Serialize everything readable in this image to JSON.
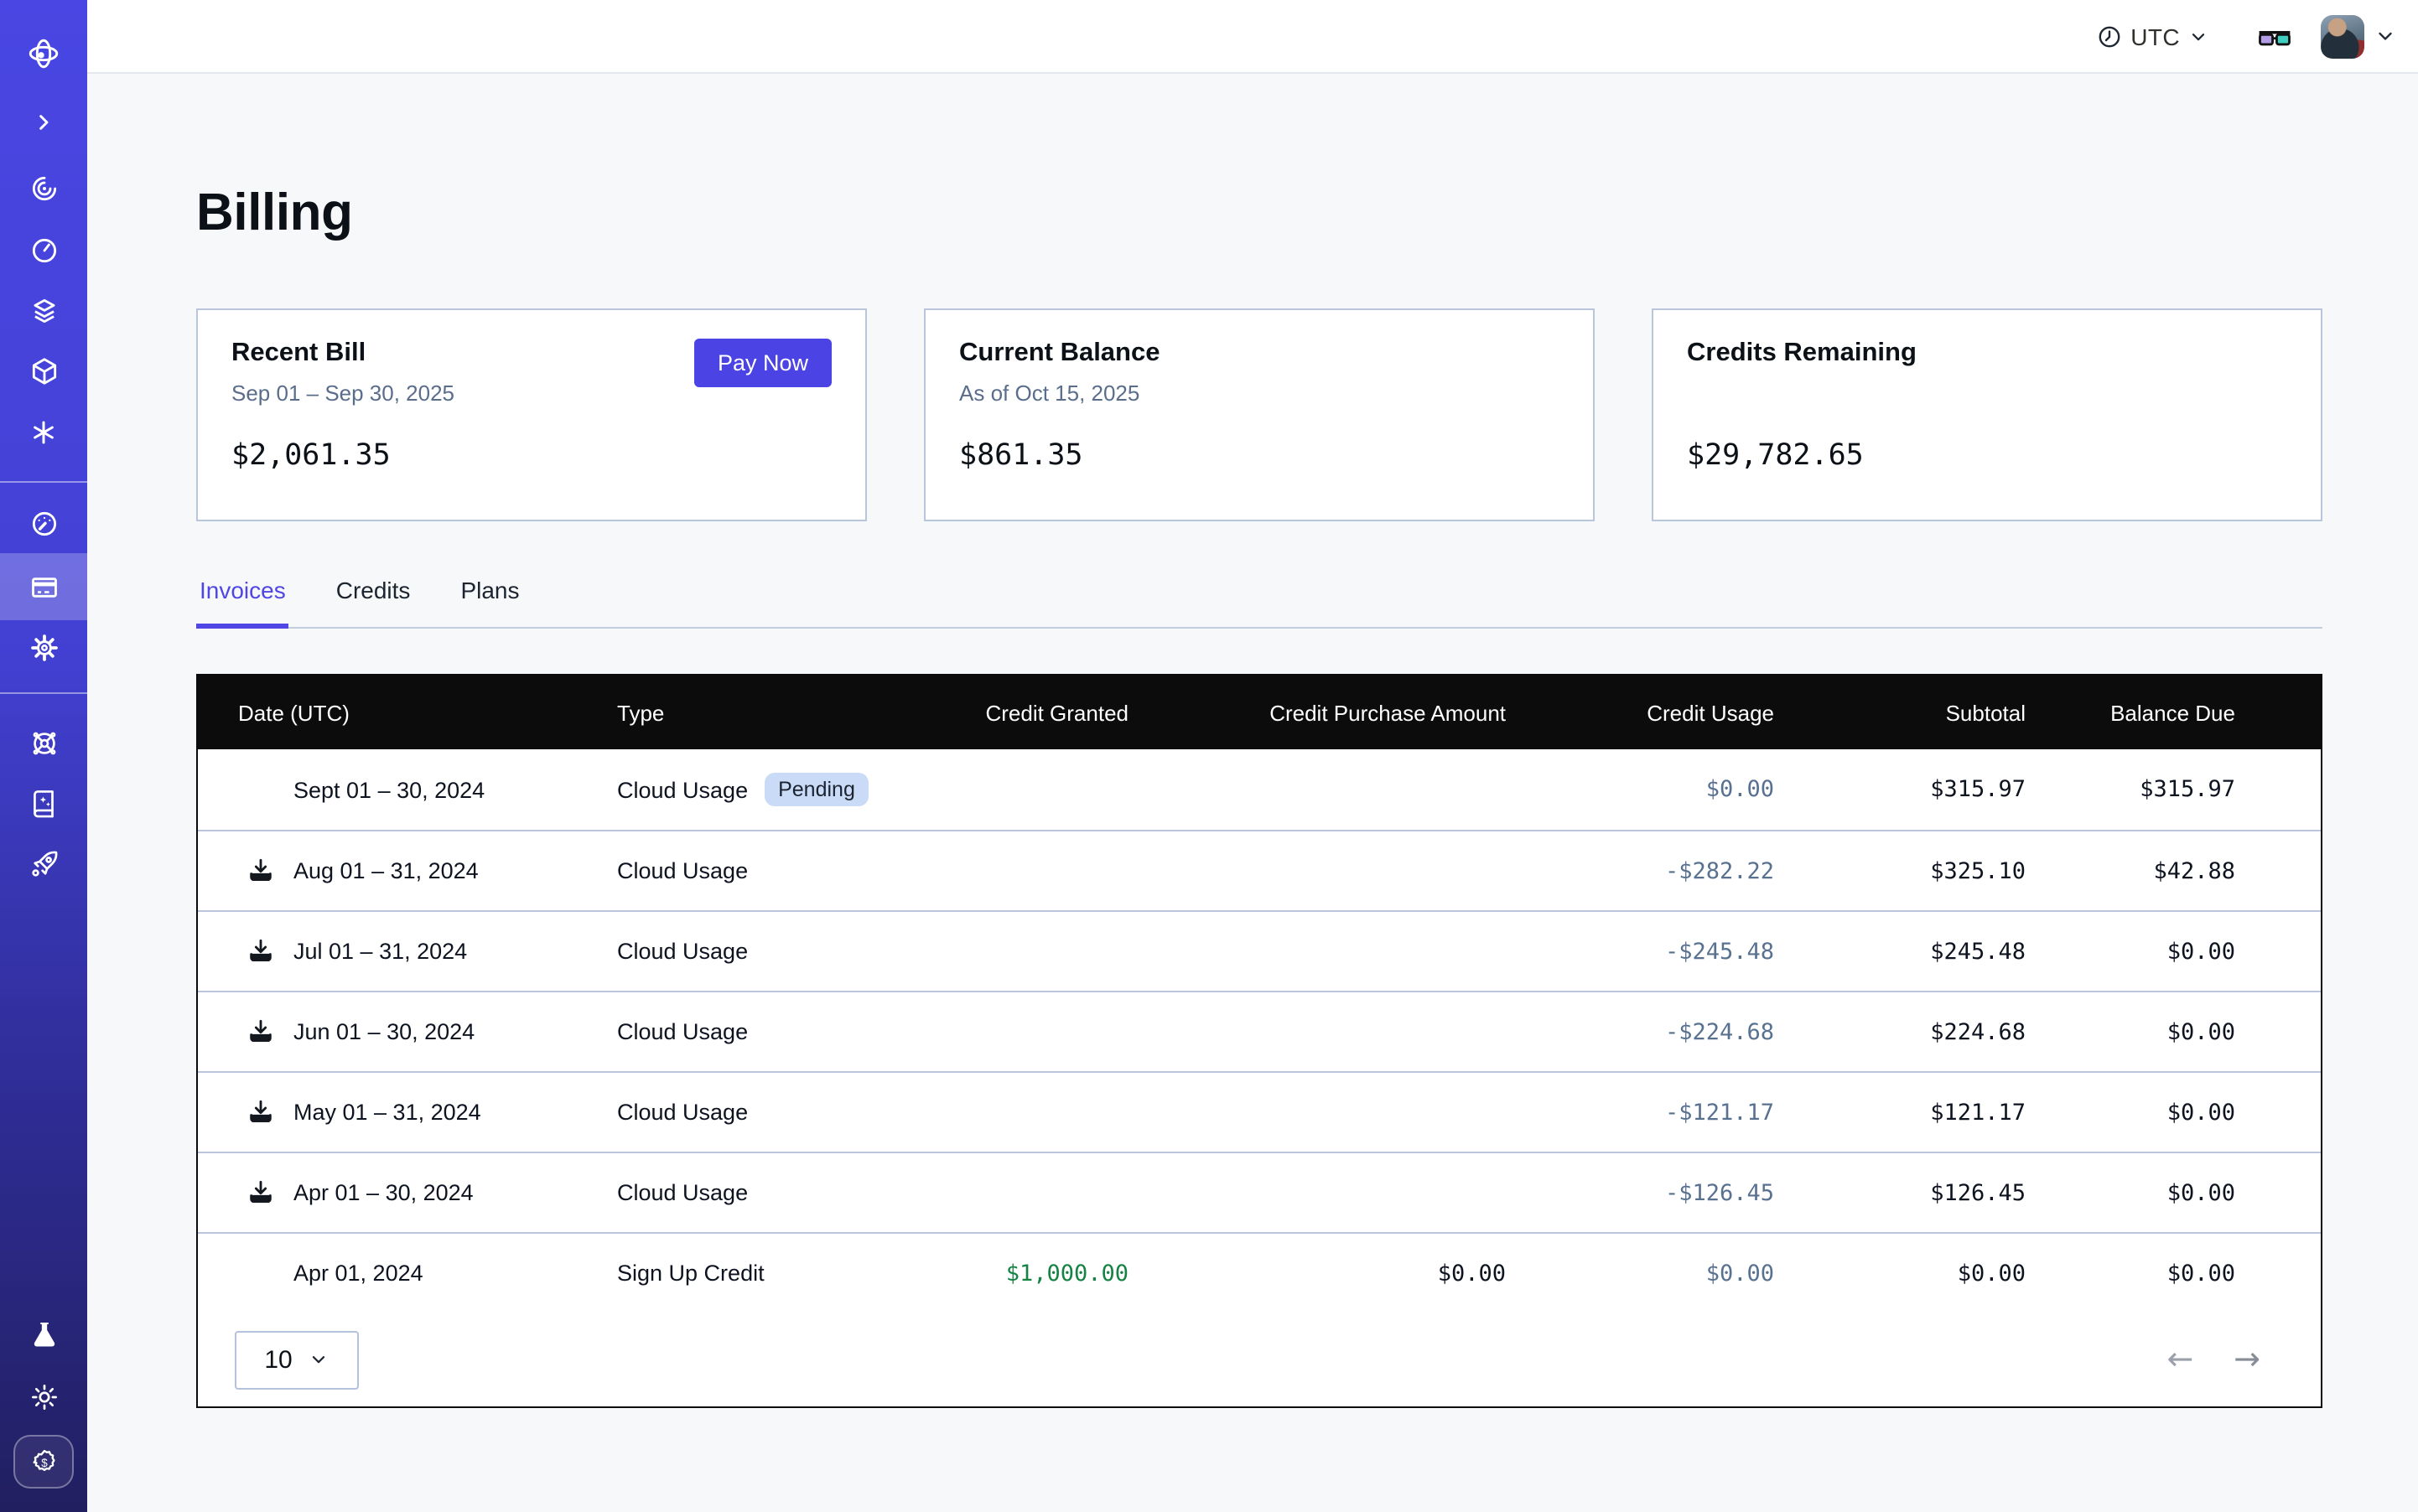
{
  "topbar": {
    "timezone_label": "UTC",
    "icons": [
      "clock-icon",
      "chevron-down-icon",
      "3d-glasses-icon",
      "avatar",
      "chevron-down-icon"
    ]
  },
  "page": {
    "title": "Billing"
  },
  "cards": [
    {
      "title": "Recent Bill",
      "subtitle": "Sep 01 – Sep 30, 2025",
      "amount": "$2,061.35",
      "action": "Pay Now",
      "action_color": "#4b43e3"
    },
    {
      "title": "Current Balance",
      "subtitle": "As of Oct 15, 2025",
      "amount": "$861.35"
    },
    {
      "title": "Credits Remaining",
      "subtitle": "",
      "amount": "$29,782.65"
    }
  ],
  "tabs": [
    {
      "label": "Invoices",
      "active": true
    },
    {
      "label": "Credits",
      "active": false
    },
    {
      "label": "Plans",
      "active": false
    }
  ],
  "table": {
    "columns": [
      "Date (UTC)",
      "Type",
      "Credit Granted",
      "Credit Purchase Amount",
      "Credit Usage",
      "Subtotal",
      "Balance Due"
    ],
    "rows": [
      {
        "date": "Sept 01 – 30, 2024",
        "download": false,
        "type": "Cloud Usage",
        "badge": "Pending",
        "granted": "",
        "purchase": "",
        "usage": "$0.00",
        "subtotal": "$315.97",
        "balance": "$315.97"
      },
      {
        "date": "Aug 01 – 31, 2024",
        "download": true,
        "type": "Cloud Usage",
        "badge": "",
        "granted": "",
        "purchase": "",
        "usage": "-$282.22",
        "subtotal": "$325.10",
        "balance": "$42.88"
      },
      {
        "date": "Jul 01 – 31, 2024",
        "download": true,
        "type": "Cloud Usage",
        "badge": "",
        "granted": "",
        "purchase": "",
        "usage": "-$245.48",
        "subtotal": "$245.48",
        "balance": "$0.00"
      },
      {
        "date": "Jun 01 – 30, 2024",
        "download": true,
        "type": "Cloud Usage",
        "badge": "",
        "granted": "",
        "purchase": "",
        "usage": "-$224.68",
        "subtotal": "$224.68",
        "balance": "$0.00"
      },
      {
        "date": "May 01 – 31, 2024",
        "download": true,
        "type": "Cloud Usage",
        "badge": "",
        "granted": "",
        "purchase": "",
        "usage": "-$121.17",
        "subtotal": "$121.17",
        "balance": "$0.00"
      },
      {
        "date": "Apr 01 – 30, 2024",
        "download": true,
        "type": "Cloud Usage",
        "badge": "",
        "granted": "",
        "purchase": "",
        "usage": "-$126.45",
        "subtotal": "$126.45",
        "balance": "$0.00"
      },
      {
        "date": "Apr 01, 2024",
        "download": false,
        "type": "Sign Up Credit",
        "badge": "",
        "granted": "$1,000.00",
        "purchase": "$0.00",
        "usage": "$0.00",
        "subtotal": "$0.00",
        "balance": "$0.00"
      }
    ],
    "badge_colors": {
      "pending_bg": "#c9dbf6",
      "pending_text": "#1c2330"
    },
    "value_colors": {
      "usage": "#587191",
      "granted": "#168243",
      "default": "#0e1320"
    },
    "pagination": {
      "page_size": "10"
    }
  },
  "sidebar": {
    "icons": [
      "planet-logo",
      "collapse-chevron",
      "trace-spiral",
      "history-timer",
      "layers",
      "sandbox-cube",
      "asterisk",
      "dashboard-gauge",
      "billing-card",
      "settings-gear",
      "support-wheel",
      "docs-book",
      "rocket",
      "labs-flask",
      "theme-sun",
      "credits-dollar-badge"
    ],
    "active_item": "billing-card",
    "colors": {
      "top": "#4946e3",
      "bottom": "#211f60",
      "active_highlight": "rgba(255,255,255,0.24)"
    }
  },
  "colors": {
    "accent": "#4f46e5",
    "main_bg": "#f7f8fa",
    "card_border": "#b9c5da",
    "table_header_bg": "#0c0c0d",
    "row_divider": "#b9c5da"
  }
}
